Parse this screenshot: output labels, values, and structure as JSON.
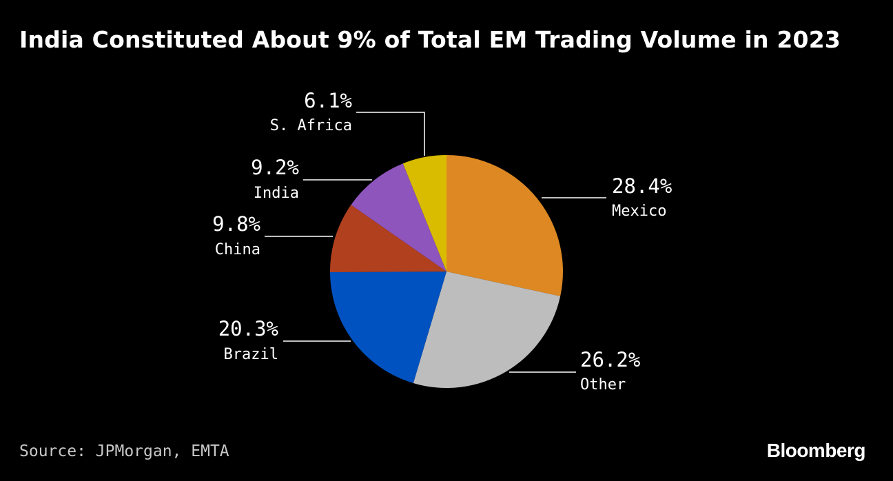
{
  "title": "India Constituted About 9% of Total EM Trading Volume in 2023",
  "source": "Source: JPMorgan, EMTA",
  "brand": "Bloomberg",
  "chart_data": {
    "type": "pie",
    "title": "India Constituted About 9% of Total EM Trading Volume in 2023",
    "start": "12 o'clock",
    "direction": "clockwise",
    "slices": [
      {
        "name": "Mexico",
        "value": 28.4,
        "label": "28.4%",
        "color": "#dd8822"
      },
      {
        "name": "Other",
        "value": 26.2,
        "label": "26.2%",
        "color": "#bdbdbd"
      },
      {
        "name": "Brazil",
        "value": 20.3,
        "label": "20.3%",
        "color": "#0052c0"
      },
      {
        "name": "China",
        "value": 9.8,
        "label": "9.8%",
        "color": "#b0401e"
      },
      {
        "name": "India",
        "value": 9.2,
        "label": "9.2%",
        "color": "#8e55bd"
      },
      {
        "name": "S. Africa",
        "value": 6.1,
        "label": "6.1%",
        "color": "#d9bb00"
      }
    ]
  }
}
